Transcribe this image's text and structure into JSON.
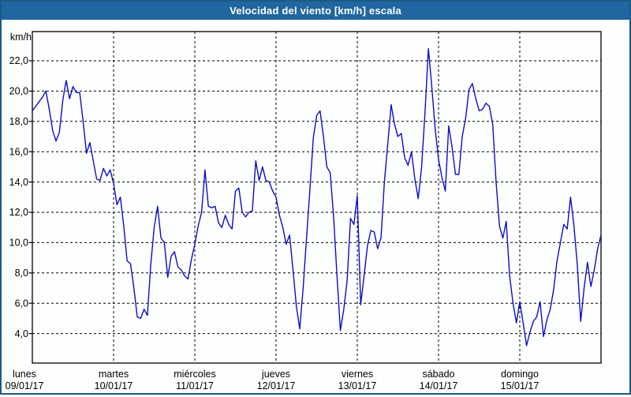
{
  "window": {
    "title": "Velocidad del viento [km/h] escala",
    "titlebar_bg": "#2066a0",
    "titlebar_text_color": "#ffffff",
    "border_color": "#1b5a84",
    "background": "#fdfefe"
  },
  "chart_data": {
    "type": "line",
    "title": "Velocidad del viento [km/h] escala",
    "ylabel": "km/h",
    "xlabel": "",
    "ylim": [
      2.1,
      23.9
    ],
    "grid": "dashed",
    "legend": "none",
    "line_color": "#0d0dc4",
    "grid_color": "#000000",
    "yticks": [
      22,
      20,
      18,
      16,
      14,
      12,
      10,
      8,
      6,
      4
    ],
    "ytick_labels": [
      "22,0",
      "20,0",
      "18,0",
      "16,0",
      "14,0",
      "12,0",
      "10,0",
      "8,0",
      "6,0",
      "4,0"
    ],
    "x_axis_days": [
      {
        "name": "lunes",
        "date": "09/01/17"
      },
      {
        "name": "martes",
        "date": "10/01/17"
      },
      {
        "name": "miércoles",
        "date": "11/01/17"
      },
      {
        "name": "jueves",
        "date": "12/01/17"
      },
      {
        "name": "viernes",
        "date": "13/01/17"
      },
      {
        "name": "sábado",
        "date": "14/01/17"
      },
      {
        "name": "domingo",
        "date": "15/01/17"
      }
    ],
    "sampling_interval_hours": 1,
    "series": [
      {
        "name": "Velocidad del viento (km/h)",
        "values": [
          18.7,
          19.0,
          19.3,
          19.6,
          20.0,
          18.8,
          17.4,
          16.7,
          17.3,
          19.4,
          20.7,
          19.5,
          20.3,
          19.9,
          19.9,
          18.0,
          15.9,
          16.6,
          15.4,
          14.2,
          14.1,
          14.9,
          14.4,
          14.8,
          13.9,
          12.5,
          13.0,
          11.1,
          8.8,
          8.6,
          7.0,
          5.1,
          5.0,
          5.6,
          5.2,
          8.6,
          11.0,
          12.4,
          10.3,
          10.0,
          7.7,
          9.1,
          9.4,
          8.4,
          8.2,
          7.8,
          7.6,
          8.9,
          9.9,
          11.1,
          12.0,
          14.8,
          12.4,
          12.3,
          12.4,
          11.3,
          11.0,
          11.8,
          11.2,
          10.9,
          13.4,
          13.6,
          12.0,
          11.7,
          12.0,
          12.1,
          15.4,
          14.1,
          15.0,
          14.1,
          14.0,
          13.4,
          13.0,
          11.8,
          11.0,
          9.9,
          10.5,
          8.2,
          5.8,
          4.3,
          7.0,
          10.3,
          13.5,
          16.9,
          18.4,
          18.7,
          17.0,
          15.0,
          14.6,
          11.7,
          7.8,
          4.2,
          5.6,
          7.5,
          11.6,
          11.2,
          13.1,
          5.9,
          7.8,
          9.8,
          10.8,
          10.7,
          9.6,
          10.3,
          14.0,
          16.5,
          19.1,
          17.8,
          17.0,
          17.2,
          15.6,
          15.1,
          16.0,
          14.2,
          12.9,
          15.0,
          18.6,
          22.8,
          20.3,
          17.5,
          15.5,
          14.3,
          13.4,
          17.7,
          16.3,
          14.5,
          14.5,
          17.0,
          18.2,
          20.1,
          20.5,
          19.5,
          18.7,
          18.8,
          19.2,
          19.0,
          17.8,
          14.0,
          11.1,
          10.3,
          11.4,
          7.8,
          6.0,
          4.7,
          6.1,
          4.7,
          3.2,
          4.1,
          4.8,
          5.1,
          6.1,
          3.8,
          4.9,
          5.6,
          6.9,
          8.8,
          10.0,
          11.2,
          10.9,
          13.0,
          11.1,
          8.5,
          4.8,
          7.0,
          8.7,
          7.1,
          8.2,
          9.6,
          10.5
        ]
      }
    ]
  }
}
